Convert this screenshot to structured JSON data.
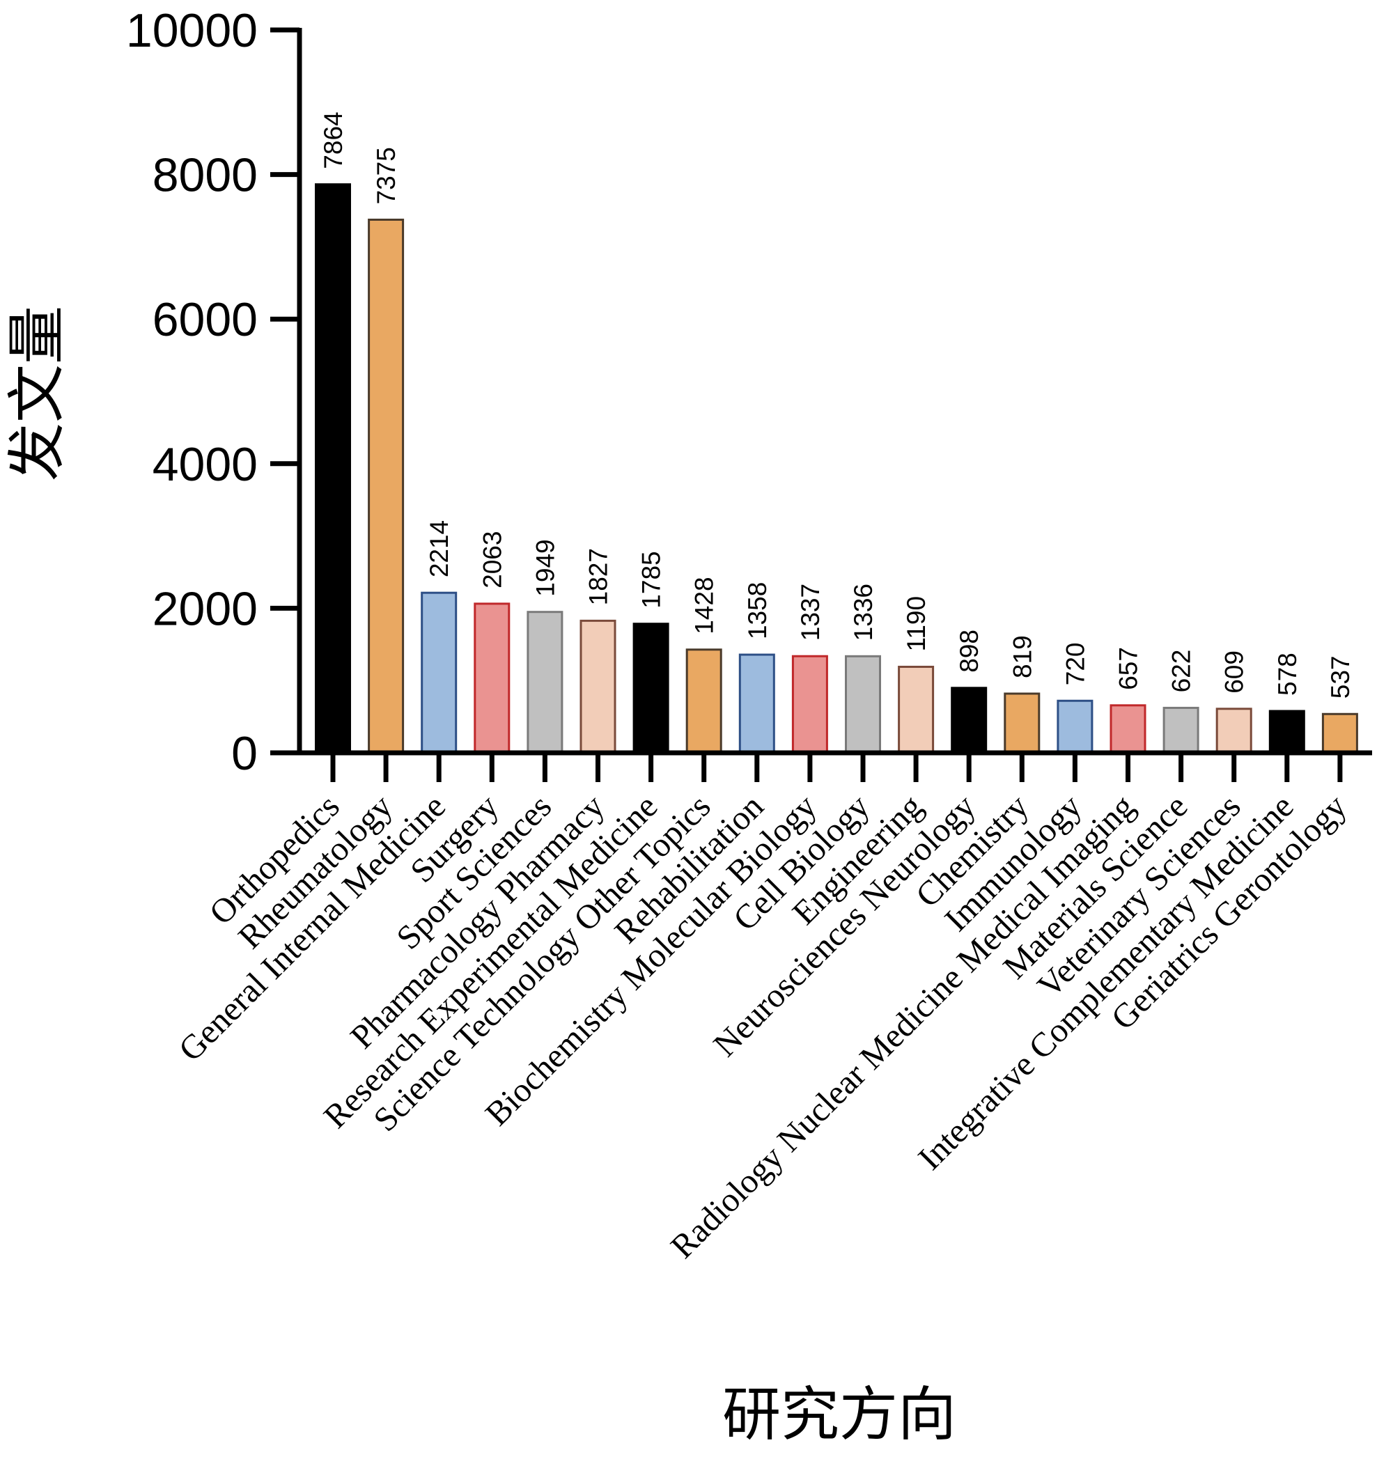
{
  "chart_data": {
    "type": "bar",
    "title": "",
    "xlabel": "研究方向",
    "ylabel": "发文量",
    "ylim": [
      0,
      10000
    ],
    "yticks": [
      0,
      2000,
      4000,
      6000,
      8000,
      10000
    ],
    "grid": false,
    "legend": "none",
    "categories": [
      "Orthopedics",
      "Rheumatology",
      "General Internal Medicine",
      "Surgery",
      "Sport Sciences",
      "Pharmacology Pharmacy",
      "Research Experimental Medicine",
      "Science Technology Other Topics",
      "Rehabilitation",
      "Biochemistry Molecular Biology",
      "Cell Biology",
      "Engineering",
      "Neurosciences Neurology",
      "Chemistry",
      "Immunology",
      "Radiology Nuclear Medicine Medical Imaging",
      "Materials Science",
      "Veterinary Sciences",
      "Integrative Complementary Medicine",
      "Geriatrics Gerontology"
    ],
    "values": [
      7864,
      7375,
      2214,
      2063,
      1949,
      1827,
      1785,
      1428,
      1358,
      1337,
      1336,
      1190,
      898,
      819,
      720,
      657,
      622,
      609,
      578,
      537
    ],
    "palette": [
      {
        "fill": "#000000",
        "stroke": "#000000"
      },
      {
        "fill": "#E9A862",
        "stroke": "#4a3a2a"
      },
      {
        "fill": "#9DBBDE",
        "stroke": "#2d4f86"
      },
      {
        "fill": "#EA9391",
        "stroke": "#c0282a"
      },
      {
        "fill": "#C0C0C0",
        "stroke": "#7a7a7a"
      },
      {
        "fill": "#F2CDB8",
        "stroke": "#7a4a3a"
      }
    ]
  }
}
